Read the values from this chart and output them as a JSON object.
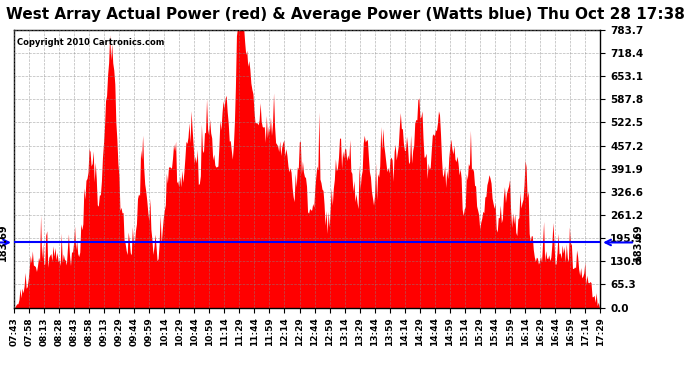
{
  "title": "West Array Actual Power (red) & Average Power (Watts blue) Thu Oct 28 17:38",
  "copyright": "Copyright 2010 Cartronics.com",
  "avg_power": 183.69,
  "ymax": 783.7,
  "ymin": 0.0,
  "yticks": [
    0.0,
    65.3,
    130.6,
    195.9,
    261.2,
    326.6,
    391.9,
    457.2,
    522.5,
    587.8,
    653.1,
    718.4,
    783.7
  ],
  "xtick_labels": [
    "07:43",
    "07:58",
    "08:13",
    "08:28",
    "08:43",
    "08:58",
    "09:13",
    "09:29",
    "09:44",
    "09:59",
    "10:14",
    "10:29",
    "10:44",
    "10:59",
    "11:14",
    "11:29",
    "11:44",
    "11:59",
    "12:14",
    "12:29",
    "12:44",
    "12:59",
    "13:14",
    "13:29",
    "13:44",
    "13:59",
    "14:14",
    "14:29",
    "14:44",
    "14:59",
    "15:14",
    "15:29",
    "15:44",
    "15:59",
    "16:14",
    "16:29",
    "16:44",
    "16:59",
    "17:14",
    "17:29"
  ],
  "red_color": "#ff0000",
  "blue_color": "#0000ff",
  "bg_color": "#ffffff",
  "grid_color": "#888888",
  "title_fontsize": 11,
  "annotation_fontsize": 7
}
